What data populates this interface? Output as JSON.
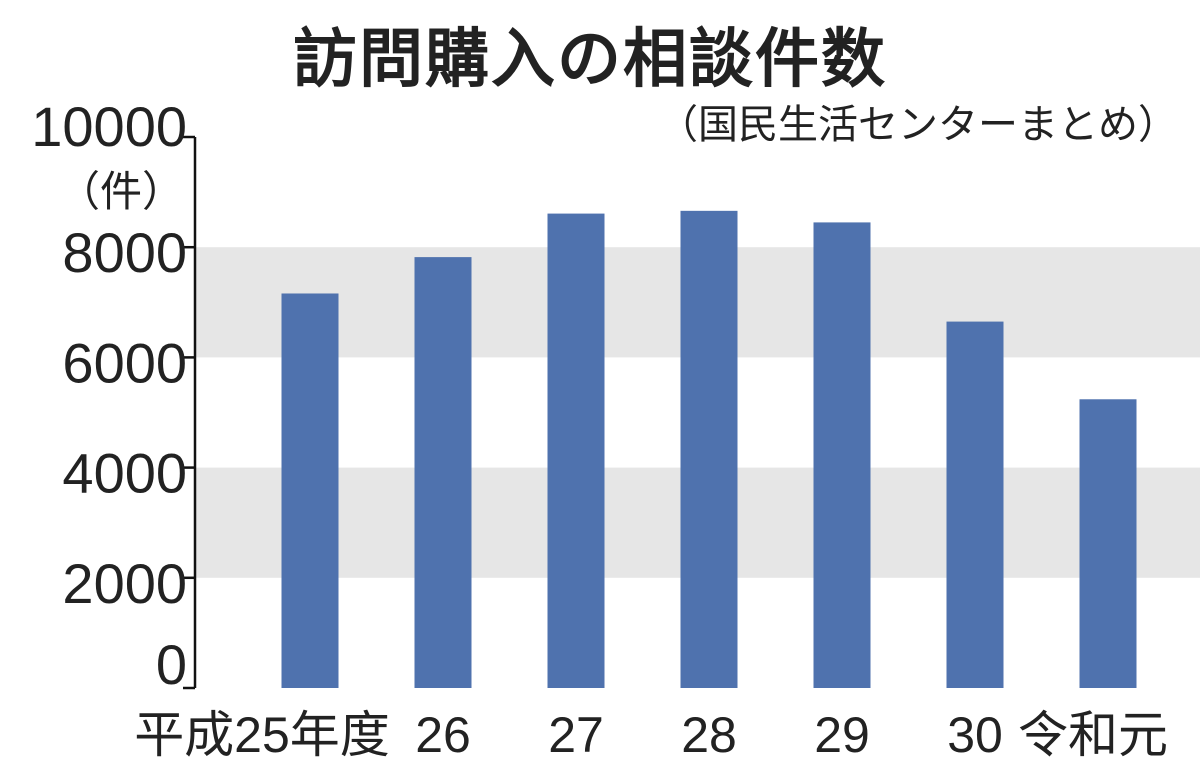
{
  "chart_data": {
    "type": "bar",
    "title": "訪問購入の相談件数",
    "subtitle": "（国民生活センターまとめ）",
    "ylabel": "（件）",
    "xlabel": "",
    "categories": [
      "平成25年度",
      "26",
      "27",
      "28",
      "29",
      "30",
      "令和元"
    ],
    "values": [
      7160,
      7820,
      8610,
      8660,
      8450,
      6650,
      5240
    ],
    "ylim": [
      0,
      10000
    ],
    "yticks": [
      "0",
      "2000",
      "4000",
      "6000",
      "8000",
      "10000"
    ],
    "grid": "alternating gray bands",
    "colors": {
      "bar": "#4f72ae",
      "band": "#e6e6e6"
    }
  }
}
